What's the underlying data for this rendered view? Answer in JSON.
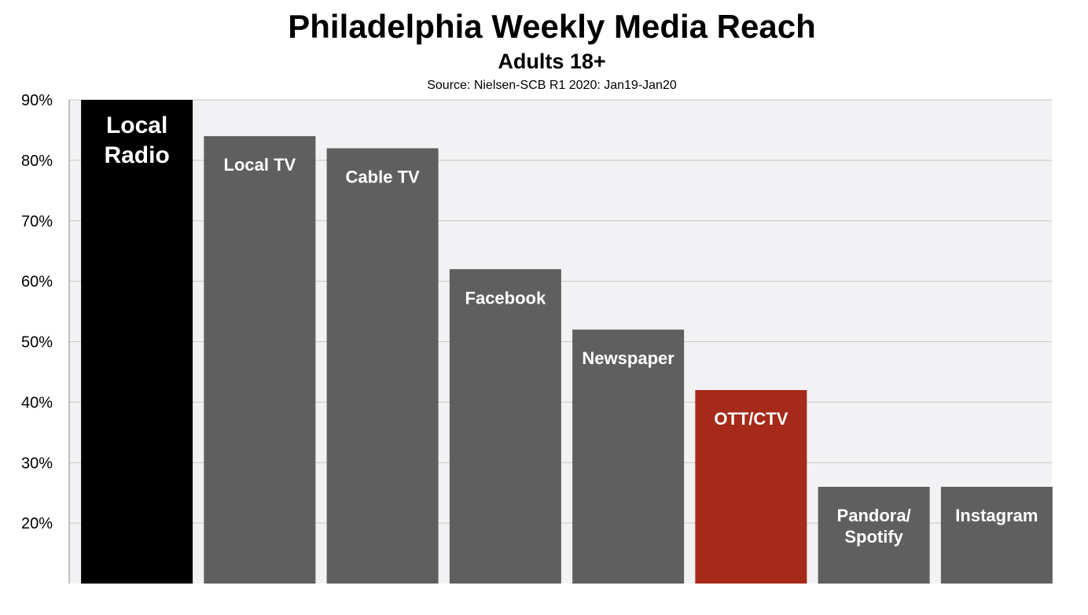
{
  "chart_data": {
    "type": "bar",
    "title": "Philadelphia Weekly Media Reach",
    "subtitle": "Adults 18+",
    "source": "Source: Nielsen-SCB R1 2020: Jan19-Jan20",
    "xlabel": "",
    "ylabel": "",
    "ylim": [
      10,
      90
    ],
    "yticks": [
      20,
      30,
      40,
      50,
      60,
      70,
      80,
      90
    ],
    "ytick_labels": [
      "20%",
      "30%",
      "40%",
      "50%",
      "60%",
      "70%",
      "80%",
      "90%"
    ],
    "grid": true,
    "legend": "none",
    "categories": [
      {
        "label": [
          "Local",
          "Radio"
        ],
        "value": 90,
        "color": "#000000"
      },
      {
        "label": [
          "Local TV"
        ],
        "value": 84,
        "color": "#5f5f5f"
      },
      {
        "label": [
          "Cable TV"
        ],
        "value": 82,
        "color": "#5f5f5f"
      },
      {
        "label": [
          "Facebook"
        ],
        "value": 62,
        "color": "#5f5f5f"
      },
      {
        "label": [
          "Newspaper"
        ],
        "value": 52,
        "color": "#5f5f5f"
      },
      {
        "label": [
          "OTT/CTV"
        ],
        "value": 42,
        "color": "#a52a19"
      },
      {
        "label": [
          "Pandora/",
          "Spotify"
        ],
        "value": 26,
        "color": "#5f5f5f"
      },
      {
        "label": [
          "Instagram"
        ],
        "value": 26,
        "color": "#5f5f5f"
      }
    ],
    "colors": {
      "plot_bg": "#f2f2f4",
      "grid": "#c8c8c8",
      "axis": "#888888"
    }
  }
}
